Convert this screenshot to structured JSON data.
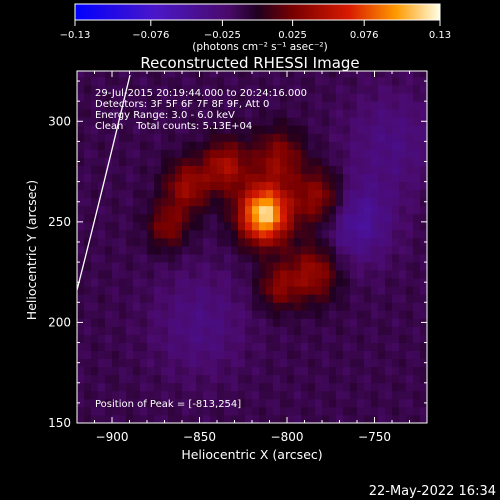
{
  "colorbar": {
    "min": -0.13,
    "max": 0.13,
    "ticks": [
      "-0.13",
      "-0.076",
      "-0.025",
      "0.025",
      "0.076",
      "0.13"
    ],
    "unit_label": "(photons cm⁻² s⁻¹ asec⁻²)"
  },
  "chart_data": {
    "type": "heatmap",
    "title": "Reconstructed RHESSI Image",
    "xlabel": "Heliocentric X (arcsec)",
    "ylabel": "Heliocentric Y (arcsec)",
    "xlim": [
      -920,
      -720
    ],
    "ylim": [
      150,
      325
    ],
    "x_ticks": [
      -900,
      -850,
      -800,
      -750
    ],
    "y_ticks": [
      150,
      200,
      250,
      300
    ],
    "x_tick_labels": [
      "−900",
      "−850",
      "−800",
      "−750"
    ],
    "y_tick_labels": [
      "150",
      "200",
      "250",
      "300"
    ],
    "peak": {
      "x": -813,
      "y": 254,
      "value": 0.13
    },
    "sources": [
      {
        "x": -813,
        "y": 254,
        "sigma": 10,
        "amp": 0.13
      },
      {
        "x": -835,
        "y": 278,
        "sigma": 9,
        "amp": 0.055
      },
      {
        "x": -857,
        "y": 268,
        "sigma": 9,
        "amp": 0.05
      },
      {
        "x": -868,
        "y": 248,
        "sigma": 8,
        "amp": 0.04
      },
      {
        "x": -805,
        "y": 282,
        "sigma": 10,
        "amp": 0.045
      },
      {
        "x": -782,
        "y": 262,
        "sigma": 10,
        "amp": 0.05
      },
      {
        "x": -785,
        "y": 225,
        "sigma": 10,
        "amp": 0.05
      },
      {
        "x": -805,
        "y": 218,
        "sigma": 8,
        "amp": 0.04
      },
      {
        "x": -760,
        "y": 250,
        "sigma": 14,
        "amp": -0.035
      },
      {
        "x": -850,
        "y": 200,
        "sigma": 18,
        "amp": -0.02
      },
      {
        "x": -740,
        "y": 290,
        "sigma": 18,
        "amp": -0.02
      }
    ],
    "info_lines": [
      "29-Jul-2015 20:19:44.000 to 20:24:16.000",
      "Detectors: 3F 5F 6F 7F 8F 9F, Att 0",
      "Energy Range: 3.0 - 6.0 keV",
      "Clean    Total counts: 5.13E+04"
    ],
    "peak_text": "Position of Peak = [-813,254]"
  },
  "footer_date": "22-May-2022 16:34"
}
